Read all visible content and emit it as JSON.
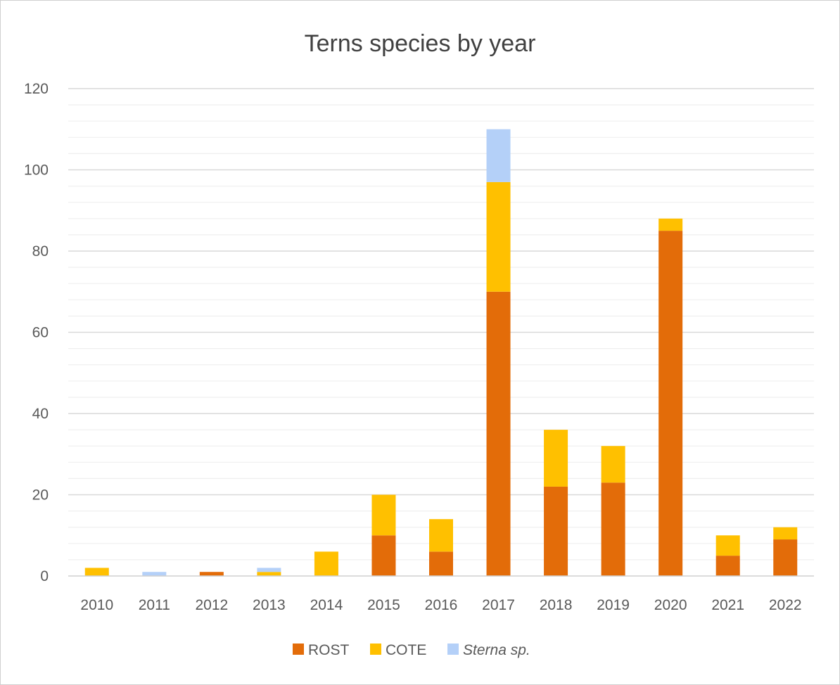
{
  "chart_data": {
    "type": "bar",
    "stacked": true,
    "title": "Terns species by year",
    "xlabel": "",
    "ylabel": "",
    "categories": [
      "2010",
      "2011",
      "2012",
      "2013",
      "2014",
      "2015",
      "2016",
      "2017",
      "2018",
      "2019",
      "2020",
      "2021",
      "2022"
    ],
    "series": [
      {
        "name": "ROST",
        "color": "#E36C09",
        "values": [
          0,
          0,
          1,
          0,
          0,
          10,
          6,
          70,
          22,
          23,
          85,
          5,
          9
        ]
      },
      {
        "name": "COTE",
        "color": "#FFC000",
        "values": [
          2,
          0,
          0,
          1,
          6,
          10,
          8,
          27,
          14,
          9,
          3,
          5,
          3
        ]
      },
      {
        "name": "Sterna sp.",
        "italic": true,
        "color": "#B4D0F8",
        "values": [
          0,
          1,
          0,
          1,
          0,
          0,
          0,
          13,
          0,
          0,
          0,
          0,
          0
        ]
      }
    ],
    "ylim": [
      0,
      120
    ],
    "y_major_ticks": [
      0,
      20,
      40,
      60,
      80,
      100,
      120
    ],
    "y_minor_step": 4,
    "grid": true,
    "legend_position": "bottom"
  }
}
